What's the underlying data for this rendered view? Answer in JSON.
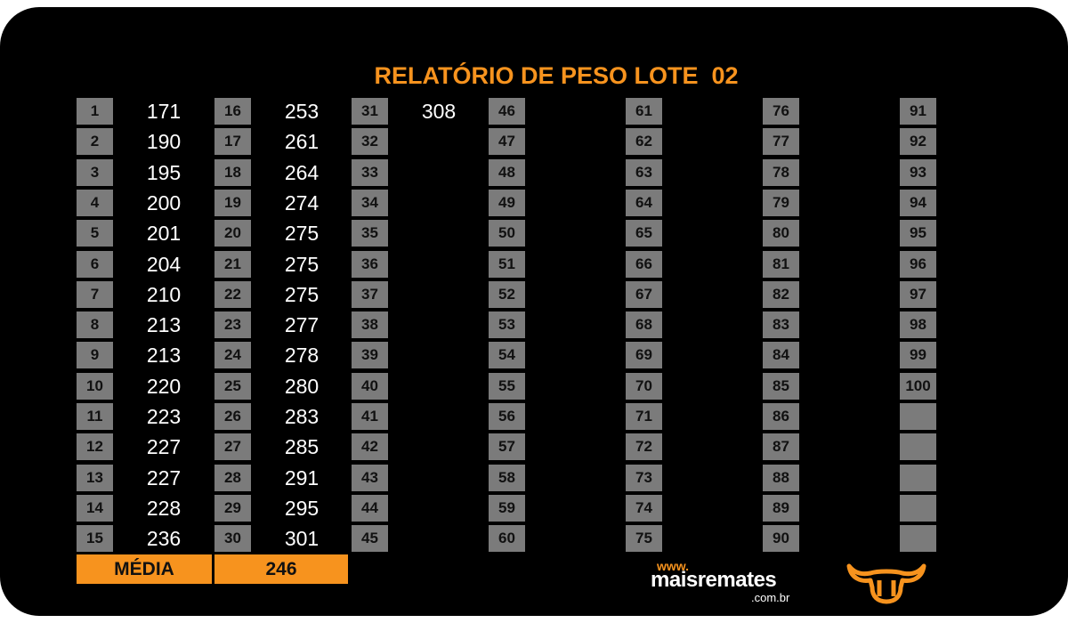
{
  "report": {
    "title": "RELATÓRIO DE PESO LOTE  02"
  },
  "weights": [
    171,
    190,
    195,
    200,
    201,
    204,
    210,
    213,
    213,
    220,
    223,
    227,
    227,
    228,
    236,
    253,
    261,
    264,
    274,
    275,
    275,
    275,
    277,
    278,
    280,
    283,
    285,
    291,
    295,
    301,
    308
  ],
  "lot_numbers_total": 100,
  "footer": {
    "average_label": "MÉDIA",
    "average_value": "246"
  },
  "logo": {
    "www": "www.",
    "name": "maisremates",
    "domain": ".com.br"
  },
  "colors": {
    "background": "#000000",
    "accent": "#f7931e",
    "cell": "#7b7b7b",
    "value_text": "#ffffff"
  }
}
